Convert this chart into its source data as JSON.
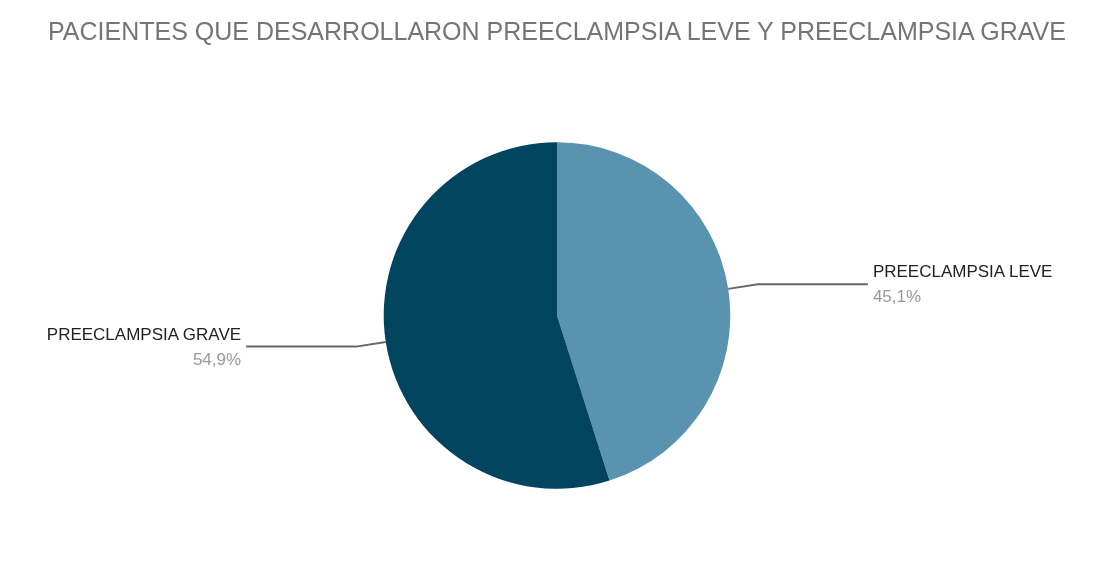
{
  "chart_data": {
    "type": "pie",
    "title": "PACIENTES QUE DESARROLLARON PREECLAMPSIA LEVE Y PREECLAMPSIA GRAVE",
    "categories": [
      "PREECLAMPSIA LEVE",
      "PREECLAMPSIA GRAVE"
    ],
    "values": [
      45.1,
      54.9
    ],
    "colors": [
      "#5a93b0",
      "#00445f"
    ],
    "value_labels": [
      "45,1%",
      "54,9%"
    ],
    "legend": false
  }
}
